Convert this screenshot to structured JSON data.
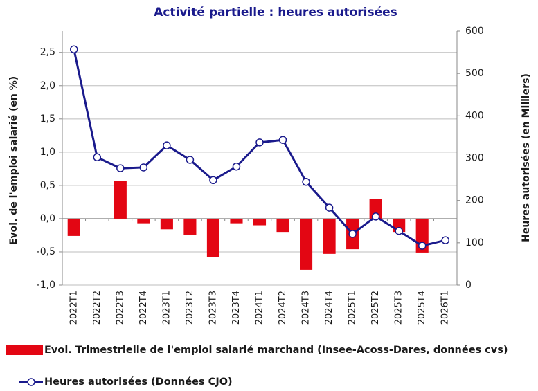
{
  "chart_data": {
    "type": "combo",
    "title": "Activité partielle : heures autorisées",
    "y_label": "Evol. de l'emploi salarié (en %)",
    "y2_label": "Heures autorisées (en Milliers)",
    "categories": [
      "2022T1",
      "2022T2",
      "2022T3",
      "2022T4",
      "2023T1",
      "2023T2",
      "2023T3",
      "2023T4",
      "2024T1",
      "2024T2",
      "2024T3",
      "2024T4",
      "2025T1",
      "2025T2",
      "2025T3",
      "2025T4",
      "2026T1"
    ],
    "series": [
      {
        "name": "Evol. Trimestrielle de l'emploi salarié marchand (Insee-Acoss-Dares, données cvs)",
        "type": "bar",
        "color": "#e30613",
        "values": [
          -0.26,
          0,
          0.57,
          -0.07,
          -0.16,
          -0.24,
          -0.58,
          -0.07,
          -0.1,
          -0.2,
          -0.77,
          -0.53,
          -0.46,
          0.3,
          -0.2,
          -0.51,
          null
        ]
      },
      {
        "name": "Heures autorisées (Données CJO)",
        "type": "line",
        "axis": "y2",
        "color": "#1a1a8c",
        "values": [
          557,
          302,
          276,
          278,
          330,
          296,
          248,
          280,
          337,
          343,
          244,
          183,
          121,
          162,
          128,
          93,
          106
        ]
      }
    ],
    "ylim": [
      -1,
      2.82
    ],
    "yticks": [
      {
        "value": -1,
        "label": "-1,0"
      },
      {
        "value": -0.5,
        "label": "-0,5"
      },
      {
        "value": 0,
        "label": "0,0"
      },
      {
        "value": 0.5,
        "label": "0,5"
      },
      {
        "value": 1,
        "label": "1,0"
      },
      {
        "value": 1.5,
        "label": "1,5"
      },
      {
        "value": 2,
        "label": "2,0"
      },
      {
        "value": 2.5,
        "label": "2,5"
      }
    ],
    "y2lim": [
      0,
      600
    ],
    "y2ticks": [
      0,
      100,
      200,
      300,
      400,
      500,
      600
    ],
    "grid": true
  }
}
